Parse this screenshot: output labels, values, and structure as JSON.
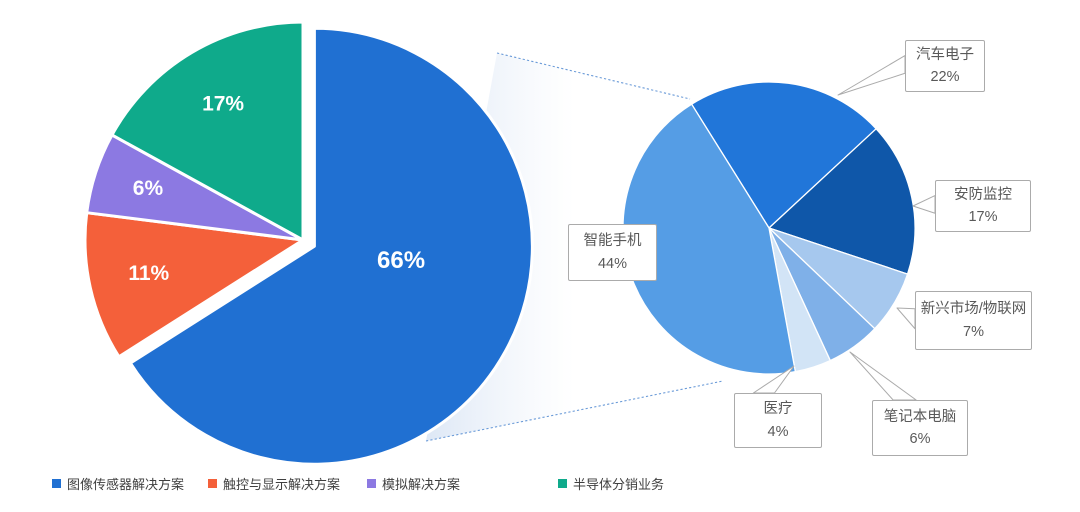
{
  "chart_data": [
    {
      "type": "pie",
      "name": "revenue-by-business-segment",
      "unit": "%",
      "start_angle": 0,
      "legend_position": "bottom-left",
      "labels_on_slices": true,
      "label_color": "#ffffff",
      "slices": [
        {
          "label": "图像传感器解决方案",
          "value": 66,
          "value_text": "66%",
          "color": "#2070d2",
          "exploded": true
        },
        {
          "label": "触控与显示解决方案",
          "value": 11,
          "value_text": "11%",
          "color": "#f4603a",
          "exploded": false
        },
        {
          "label": "模拟解决方案",
          "value": 6,
          "value_text": "6%",
          "color": "#8c79e2",
          "exploded": false
        },
        {
          "label": "半导体分销业务",
          "value": 17,
          "value_text": "17%",
          "color": "#0faa8b",
          "exploded": false
        }
      ]
    },
    {
      "type": "pie",
      "name": "image-sensor-revenue-by-application",
      "unit": "%",
      "start_angle": -32,
      "labels_as_callouts": true,
      "slices": [
        {
          "label": "汽车电子",
          "value": 22,
          "value_text": "22%",
          "color": "#2176d9"
        },
        {
          "label": "安防监控",
          "value": 17,
          "value_text": "17%",
          "color": "#0f57a9"
        },
        {
          "label": "新兴市场/物联网",
          "value": 7,
          "value_text": "7%",
          "color": "#a6c8ee"
        },
        {
          "label": "笔记本电脑",
          "value": 6,
          "value_text": "6%",
          "color": "#7fb0e8"
        },
        {
          "label": "医疗",
          "value": 4,
          "value_text": "4%",
          "color": "#d2e4f6"
        },
        {
          "label": "智能手机",
          "value": 44,
          "value_text": "44%",
          "color": "#559de5"
        }
      ]
    }
  ],
  "legend": {
    "items": [
      {
        "label": "图像传感器解决方案",
        "color": "#2070d2"
      },
      {
        "label": "触控与显示解决方案",
        "color": "#f4603a"
      },
      {
        "label": "模拟解决方案",
        "color": "#8c79e2"
      },
      {
        "label": "半导体分销业务",
        "color": "#0faa8b"
      }
    ]
  },
  "connector": {
    "style": "dotted",
    "line_color": "#6b9bd8",
    "fill_from": "#dbe6f5",
    "fill_to": "#ffffff"
  }
}
